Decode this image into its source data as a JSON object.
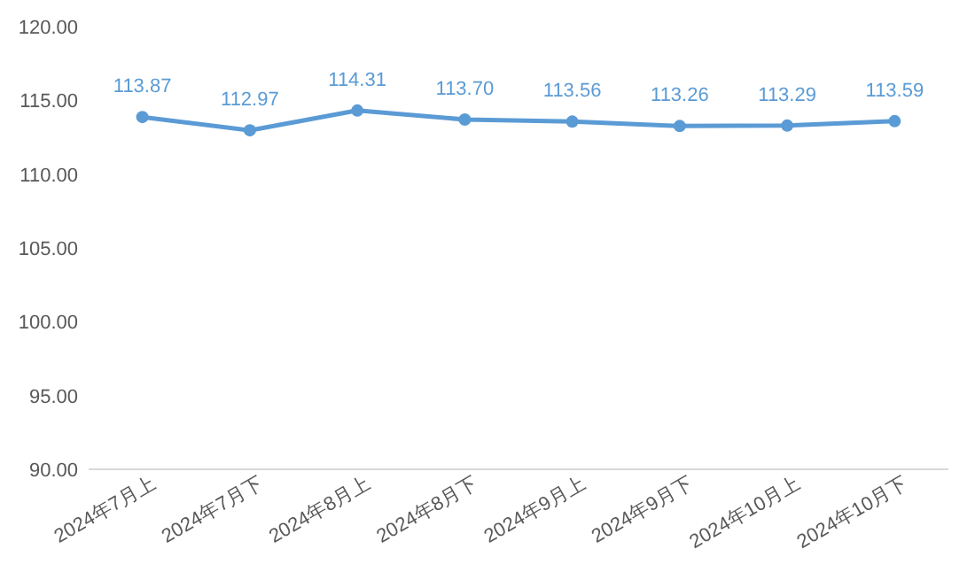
{
  "chart_data": {
    "type": "line",
    "categories": [
      "2024年7月上",
      "2024年7月下",
      "2024年8月上",
      "2024年8月下",
      "2024年9月上",
      "2024年9月下",
      "2024年10月上",
      "2024年10月下"
    ],
    "series": [
      {
        "color": "#5b9bd5",
        "values": [
          113.87,
          112.97,
          114.31,
          113.7,
          113.56,
          113.26,
          113.29,
          113.59
        ],
        "value_labels": [
          "113.87",
          "112.97",
          "114.31",
          "113.70",
          "113.56",
          "113.26",
          "113.29",
          "113.59"
        ]
      }
    ],
    "ylim": [
      90,
      120
    ],
    "yticks": [
      {
        "value": 90,
        "label": "90.00"
      },
      {
        "value": 95,
        "label": "95.00"
      },
      {
        "value": 100,
        "label": "100.00"
      },
      {
        "value": 105,
        "label": "105.00"
      },
      {
        "value": 110,
        "label": "110.00"
      },
      {
        "value": 115,
        "label": "115.00"
      },
      {
        "value": 120,
        "label": "120.00"
      }
    ],
    "marker": "circle",
    "line_style": "solid",
    "grid": false
  }
}
